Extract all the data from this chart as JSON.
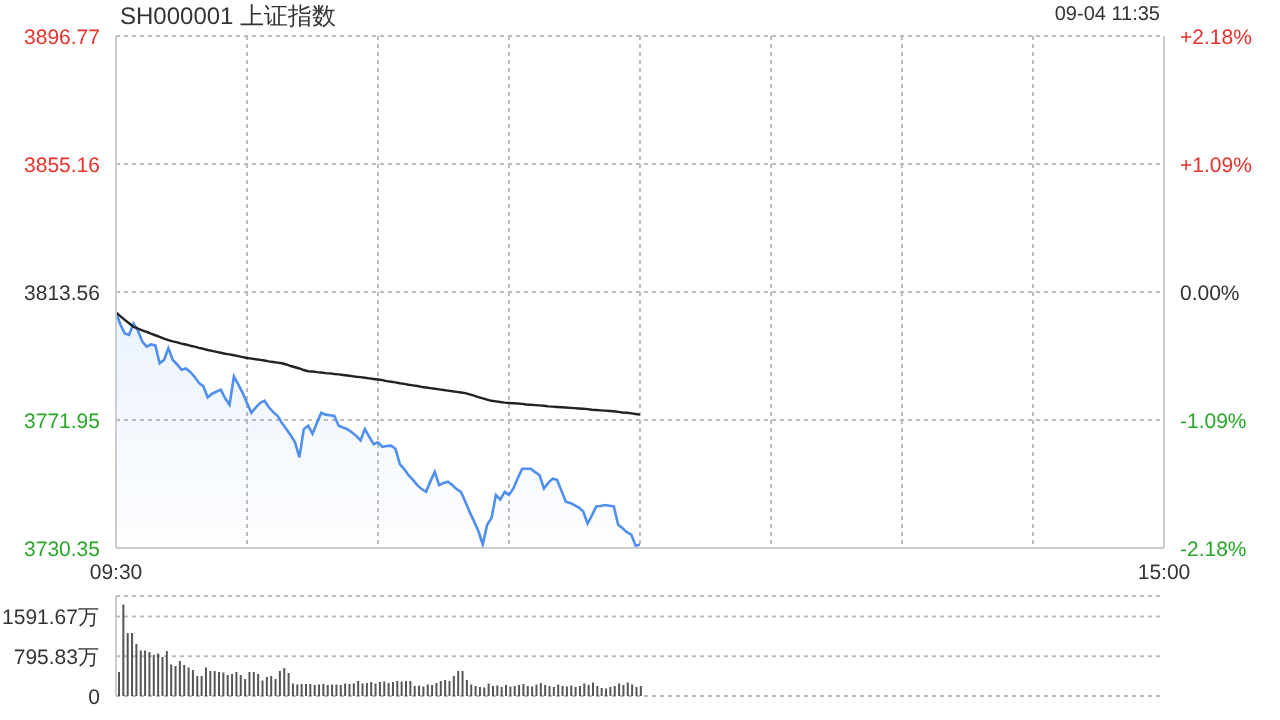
{
  "chart_data": [
    {
      "type": "area",
      "title": "SH000001 上证指数",
      "annotations": [
        "09-04 11:35"
      ],
      "categories": [
        "09:30",
        null,
        null,
        null,
        null,
        null,
        null,
        null,
        null,
        null,
        null,
        null,
        null,
        null,
        null,
        null,
        null,
        null,
        null,
        null,
        null,
        null,
        null,
        null,
        null,
        null,
        null,
        null,
        null,
        null,
        null,
        null,
        null,
        null,
        null,
        null,
        null,
        null,
        null,
        null,
        null,
        null,
        null,
        null,
        null,
        null,
        null,
        null,
        null,
        null,
        null,
        null,
        null,
        null,
        null,
        null,
        null,
        null,
        null,
        null,
        null,
        null,
        null,
        null,
        null,
        null,
        null,
        null,
        null,
        null,
        null,
        null,
        null,
        null,
        null,
        null,
        null,
        null,
        null,
        null,
        null,
        null,
        null,
        null,
        null,
        null,
        null,
        null,
        null,
        null,
        null,
        null,
        null,
        null,
        null,
        null,
        null,
        null,
        null,
        null,
        null,
        null,
        null,
        null,
        null,
        null,
        null,
        null,
        null,
        null,
        null,
        null,
        null,
        null,
        null,
        null,
        null,
        null,
        null,
        null,
        null,
        null,
        null,
        null,
        null,
        null,
        null,
        null,
        null,
        null,
        null,
        null,
        null,
        null,
        null,
        null,
        null,
        null,
        null,
        null,
        null,
        null,
        null,
        null,
        null,
        null,
        null,
        null,
        null,
        null,
        null,
        null,
        null,
        null,
        null,
        null,
        null,
        null,
        null,
        null,
        null,
        null,
        null,
        null,
        null,
        null,
        null,
        null,
        null,
        null,
        null,
        null,
        null,
        null,
        null,
        null,
        null,
        null,
        null,
        null,
        null,
        null,
        null,
        null,
        null,
        null,
        null,
        null,
        null,
        null,
        null,
        null,
        null,
        null,
        null,
        null,
        null,
        null,
        null,
        null,
        null,
        null,
        null,
        null,
        null,
        null,
        null,
        null,
        null,
        null,
        null,
        null,
        null,
        null,
        null,
        null,
        null,
        null,
        null,
        null,
        null,
        null,
        null,
        null,
        null,
        null,
        null,
        null,
        null,
        null,
        null,
        null,
        null,
        null,
        null,
        null,
        null,
        null,
        null,
        null,
        "15:00"
      ],
      "ylim": [
        3730.35,
        3896.77
      ],
      "yticks": [
        3730.35,
        3771.95,
        3813.56,
        3855.16,
        3896.77
      ],
      "y2lim": [
        -2.18,
        2.18
      ],
      "y2ticks": [
        {
          "value": -2.18,
          "label": "-2.18%"
        },
        {
          "value": -1.09,
          "label": "-1.09%"
        },
        {
          "value": 0,
          "label": "0.00%"
        },
        {
          "value": 1.09,
          "label": "+1.09%"
        },
        {
          "value": 2.18,
          "label": "+2.18%"
        }
      ],
      "grid": true,
      "series": [
        {
          "type": "area",
          "color": "#4f8ff0",
          "values": [
            3806.9,
            3803.0,
            3800.1,
            3799.6,
            3803.3,
            3801.1,
            3797.5,
            3795.8,
            3796.5,
            3796.2,
            3790.4,
            3791.5,
            3795.3,
            3791.5,
            3790.0,
            3788.3,
            3788.7,
            3787.6,
            3786.0,
            3784.0,
            3782.9,
            3779.3,
            3780.5,
            3781.2,
            3781.8,
            3779.0,
            3776.9,
            3786.1,
            3783.5,
            3780.8,
            3777.5,
            3774.3,
            3776.0,
            3777.5,
            3778.2,
            3776.1,
            3774.5,
            3773.3,
            3771.0,
            3769.0,
            3767.0,
            3764.7,
            3759.8,
            3769.0,
            3770.1,
            3767.5,
            3771.0,
            3774.3,
            3773.7,
            3773.5,
            3773.3,
            3770.1,
            3769.5,
            3769.0,
            3768.0,
            3766.8,
            3765.3,
            3769.0,
            3766.5,
            3764.1,
            3764.7,
            3763.2,
            3763.5,
            3763.6,
            3762.6,
            3757.6,
            3756.0,
            3754.0,
            3752.5,
            3750.8,
            3749.5,
            3748.6,
            3752.0,
            3755.1,
            3750.8,
            3751.5,
            3751.9,
            3750.8,
            3749.5,
            3748.6,
            3745.4,
            3742.0,
            3739.0,
            3735.8,
            3731.5,
            3737.9,
            3740.1,
            3747.6,
            3746.1,
            3748.6,
            3747.6,
            3749.7,
            3753.0,
            3756.1,
            3756.1,
            3756.1,
            3755.0,
            3754.0,
            3749.7,
            3751.5,
            3752.9,
            3752.5,
            3749.0,
            3745.4,
            3745.0,
            3744.3,
            3743.5,
            3742.2,
            3738.3,
            3741.0,
            3743.9,
            3744.0,
            3744.3,
            3744.1,
            3743.9,
            3737.9,
            3736.8,
            3735.5,
            3734.7,
            3731.1,
            3731.5,
            null,
            null,
            null,
            null,
            null,
            null,
            null,
            null,
            null,
            null,
            null,
            null,
            null,
            null,
            null,
            null,
            null,
            null,
            null,
            null,
            null,
            null,
            null,
            null,
            null,
            null,
            null,
            null,
            null,
            null,
            null,
            null,
            null,
            null,
            null,
            null,
            null,
            null,
            null,
            null,
            null,
            null,
            null,
            null,
            null,
            null,
            null,
            null,
            null,
            null,
            null,
            null,
            null,
            null,
            null,
            null,
            null,
            null,
            null,
            null,
            null,
            null,
            null,
            null,
            null,
            null,
            null,
            null,
            null,
            null,
            null,
            null,
            null,
            null,
            null,
            null,
            null,
            null,
            null,
            null,
            null,
            null,
            null,
            null,
            null,
            null,
            null,
            null,
            null,
            null,
            null,
            null,
            null,
            null,
            null,
            null,
            null,
            null,
            null,
            null,
            null,
            null,
            null,
            null,
            null,
            null,
            null,
            null,
            null,
            null,
            null,
            null,
            null,
            null,
            null,
            null,
            null,
            null,
            null,
            null
          ]
        },
        {
          "type": "line",
          "color": "#222222",
          "values": [
            3806.9,
            3805.7,
            3804.5,
            3803.4,
            3802.2,
            3801.7,
            3801.1,
            3800.6,
            3800.0,
            3799.5,
            3799.0,
            3798.4,
            3797.9,
            3797.5,
            3797.2,
            3796.8,
            3796.5,
            3796.1,
            3795.8,
            3795.4,
            3795.1,
            3794.7,
            3794.4,
            3794.1,
            3793.8,
            3793.5,
            3793.3,
            3793.0,
            3792.7,
            3792.4,
            3792.1,
            3791.9,
            3791.7,
            3791.5,
            3791.3,
            3791.0,
            3790.8,
            3790.6,
            3790.4,
            3790.0,
            3789.5,
            3789.1,
            3788.7,
            3788.2,
            3787.8,
            3787.7,
            3787.5,
            3787.4,
            3787.2,
            3787.1,
            3786.9,
            3786.8,
            3786.6,
            3786.4,
            3786.2,
            3786.0,
            3785.9,
            3785.7,
            3785.5,
            3785.3,
            3785.1,
            3784.9,
            3784.6,
            3784.4,
            3784.2,
            3783.9,
            3783.7,
            3783.4,
            3783.2,
            3783.0,
            3782.7,
            3782.5,
            3782.3,
            3782.1,
            3781.9,
            3781.7,
            3781.5,
            3781.3,
            3781.1,
            3780.9,
            3780.7,
            3780.3,
            3779.9,
            3779.4,
            3779.0,
            3778.6,
            3778.2,
            3778.0,
            3777.8,
            3777.6,
            3777.5,
            3777.4,
            3777.3,
            3777.2,
            3777.0,
            3776.9,
            3776.8,
            3776.7,
            3776.6,
            3776.4,
            3776.3,
            3776.2,
            3776.1,
            3776.0,
            3775.9,
            3775.8,
            3775.7,
            3775.6,
            3775.5,
            3775.3,
            3775.2,
            3775.1,
            3775.0,
            3774.9,
            3774.8,
            3774.6,
            3774.4,
            3774.3,
            3774.1,
            3773.9,
            3773.7,
            null,
            null,
            null,
            null,
            null,
            null,
            null,
            null,
            null,
            null,
            null,
            null,
            null,
            null,
            null,
            null,
            null,
            null,
            null,
            null,
            null,
            null,
            null,
            null,
            null,
            null,
            null,
            null,
            null,
            null,
            null,
            null,
            null,
            null,
            null,
            null,
            null,
            null,
            null,
            null,
            null,
            null,
            null,
            null,
            null,
            null,
            null,
            null,
            null,
            null,
            null,
            null,
            null,
            null,
            null,
            null,
            null,
            null,
            null,
            null,
            null,
            null,
            null,
            null,
            null,
            null,
            null,
            null,
            null,
            null,
            null,
            null,
            null,
            null,
            null,
            null,
            null,
            null,
            null,
            null,
            null,
            null,
            null,
            null,
            null,
            null,
            null,
            null,
            null,
            null,
            null,
            null,
            null,
            null,
            null,
            null,
            null,
            null,
            null,
            null,
            null,
            null,
            null,
            null,
            null,
            null,
            null,
            null,
            null,
            null,
            null,
            null,
            null,
            null,
            null,
            null,
            null,
            null,
            null,
            null
          ]
        }
      ]
    },
    {
      "type": "bar",
      "color": "#555555",
      "tick_labels": "y",
      "grid": "y",
      "categories": [
        null,
        null,
        null,
        null,
        null,
        null,
        null,
        null,
        null,
        null,
        null,
        null,
        null,
        null,
        null,
        null,
        null,
        null,
        null,
        null,
        null,
        null,
        null,
        null,
        null,
        null,
        null,
        null,
        null,
        null,
        null,
        null,
        null,
        null,
        null,
        null,
        null,
        null,
        null,
        null,
        null,
        null,
        null,
        null,
        null,
        null,
        null,
        null,
        null,
        null,
        null,
        null,
        null,
        null,
        null,
        null,
        null,
        null,
        null,
        null,
        null,
        null,
        null,
        null,
        null,
        null,
        null,
        null,
        null,
        null,
        null,
        null,
        null,
        null,
        null,
        null,
        null,
        null,
        null,
        null,
        null,
        null,
        null,
        null,
        null,
        null,
        null,
        null,
        null,
        null,
        null,
        null,
        null,
        null,
        null,
        null,
        null,
        null,
        null,
        null,
        null,
        null,
        null,
        null,
        null,
        null,
        null,
        null,
        null,
        null,
        null,
        null,
        null,
        null,
        null,
        null,
        null,
        null,
        null,
        null,
        null,
        null,
        null,
        null,
        null,
        null,
        null,
        null,
        null,
        null,
        null,
        null,
        null,
        null,
        null,
        null,
        null,
        null,
        null,
        null,
        null,
        null,
        null,
        null,
        null,
        null,
        null,
        null,
        null,
        null,
        null,
        null,
        null,
        null,
        null,
        null,
        null,
        null,
        null,
        null,
        null,
        null,
        null,
        null,
        null,
        null,
        null,
        null,
        null,
        null,
        null,
        null,
        null,
        null,
        null,
        null,
        null,
        null,
        null,
        null,
        null,
        null,
        null,
        null,
        null,
        null,
        null,
        null,
        null,
        null,
        null,
        null,
        null,
        null,
        null,
        null,
        null,
        null,
        null,
        null,
        null,
        null,
        null,
        null,
        null,
        null,
        null,
        null,
        null,
        null,
        null,
        null,
        null,
        null,
        null,
        null,
        null,
        null,
        null,
        null,
        null,
        null,
        null,
        null,
        null,
        null,
        null,
        null,
        null,
        null,
        null,
        null,
        null,
        null,
        null,
        null,
        null,
        null,
        null,
        null,
        null
      ],
      "ylim": [
        0,
        2000
      ],
      "yticks": [
        0,
        {
          "value": 795.83,
          "label": "795.83万"
        },
        {
          "value": 1591.67,
          "label": "1591.67万"
        }
      ],
      "values": [
        480,
        1830,
        1260,
        1260,
        1040,
        910,
        910,
        880,
        820,
        850,
        780,
        900,
        630,
        600,
        700,
        620,
        570,
        520,
        400,
        400,
        570,
        500,
        500,
        480,
        470,
        420,
        440,
        480,
        420,
        340,
        480,
        480,
        440,
        310,
        380,
        400,
        340,
        500,
        560,
        460,
        250,
        230,
        240,
        240,
        240,
        220,
        230,
        240,
        220,
        230,
        230,
        220,
        250,
        240,
        250,
        300,
        250,
        260,
        280,
        250,
        280,
        290,
        260,
        280,
        300,
        290,
        300,
        300,
        200,
        210,
        190,
        230,
        220,
        260,
        300,
        320,
        300,
        400,
        500,
        500,
        320,
        230,
        200,
        180,
        170,
        250,
        200,
        210,
        180,
        220,
        190,
        200,
        220,
        240,
        200,
        190,
        230,
        260,
        220,
        200,
        180,
        230,
        200,
        190,
        210,
        180,
        200,
        250,
        220,
        270,
        200,
        160,
        150,
        180,
        200,
        250,
        220,
        270,
        230,
        180,
        200,
        null,
        null,
        null,
        null,
        null,
        null,
        null,
        null,
        null,
        null,
        null,
        null,
        null,
        null,
        null,
        null,
        null,
        null,
        null,
        null,
        null,
        null,
        null,
        null,
        null,
        null,
        null,
        null,
        null,
        null,
        null,
        null,
        null,
        null,
        null,
        null,
        null,
        null,
        null,
        null,
        null,
        null,
        null,
        null,
        null,
        null,
        null,
        null,
        null,
        null,
        null,
        null,
        null,
        null,
        null,
        null,
        null,
        null,
        null,
        null,
        null,
        null,
        null,
        null,
        null,
        null,
        null,
        null,
        null,
        null,
        null,
        null,
        null,
        null,
        null,
        null,
        null,
        null,
        null,
        null,
        null,
        null,
        null,
        null,
        null,
        null,
        null,
        null,
        null,
        null,
        null,
        null,
        null,
        null,
        null,
        null,
        null,
        null,
        null,
        null,
        null,
        null,
        null,
        null,
        null,
        null,
        null,
        null,
        null,
        null,
        null,
        null,
        null,
        null,
        null,
        null,
        null,
        null,
        null,
        null
      ]
    }
  ]
}
